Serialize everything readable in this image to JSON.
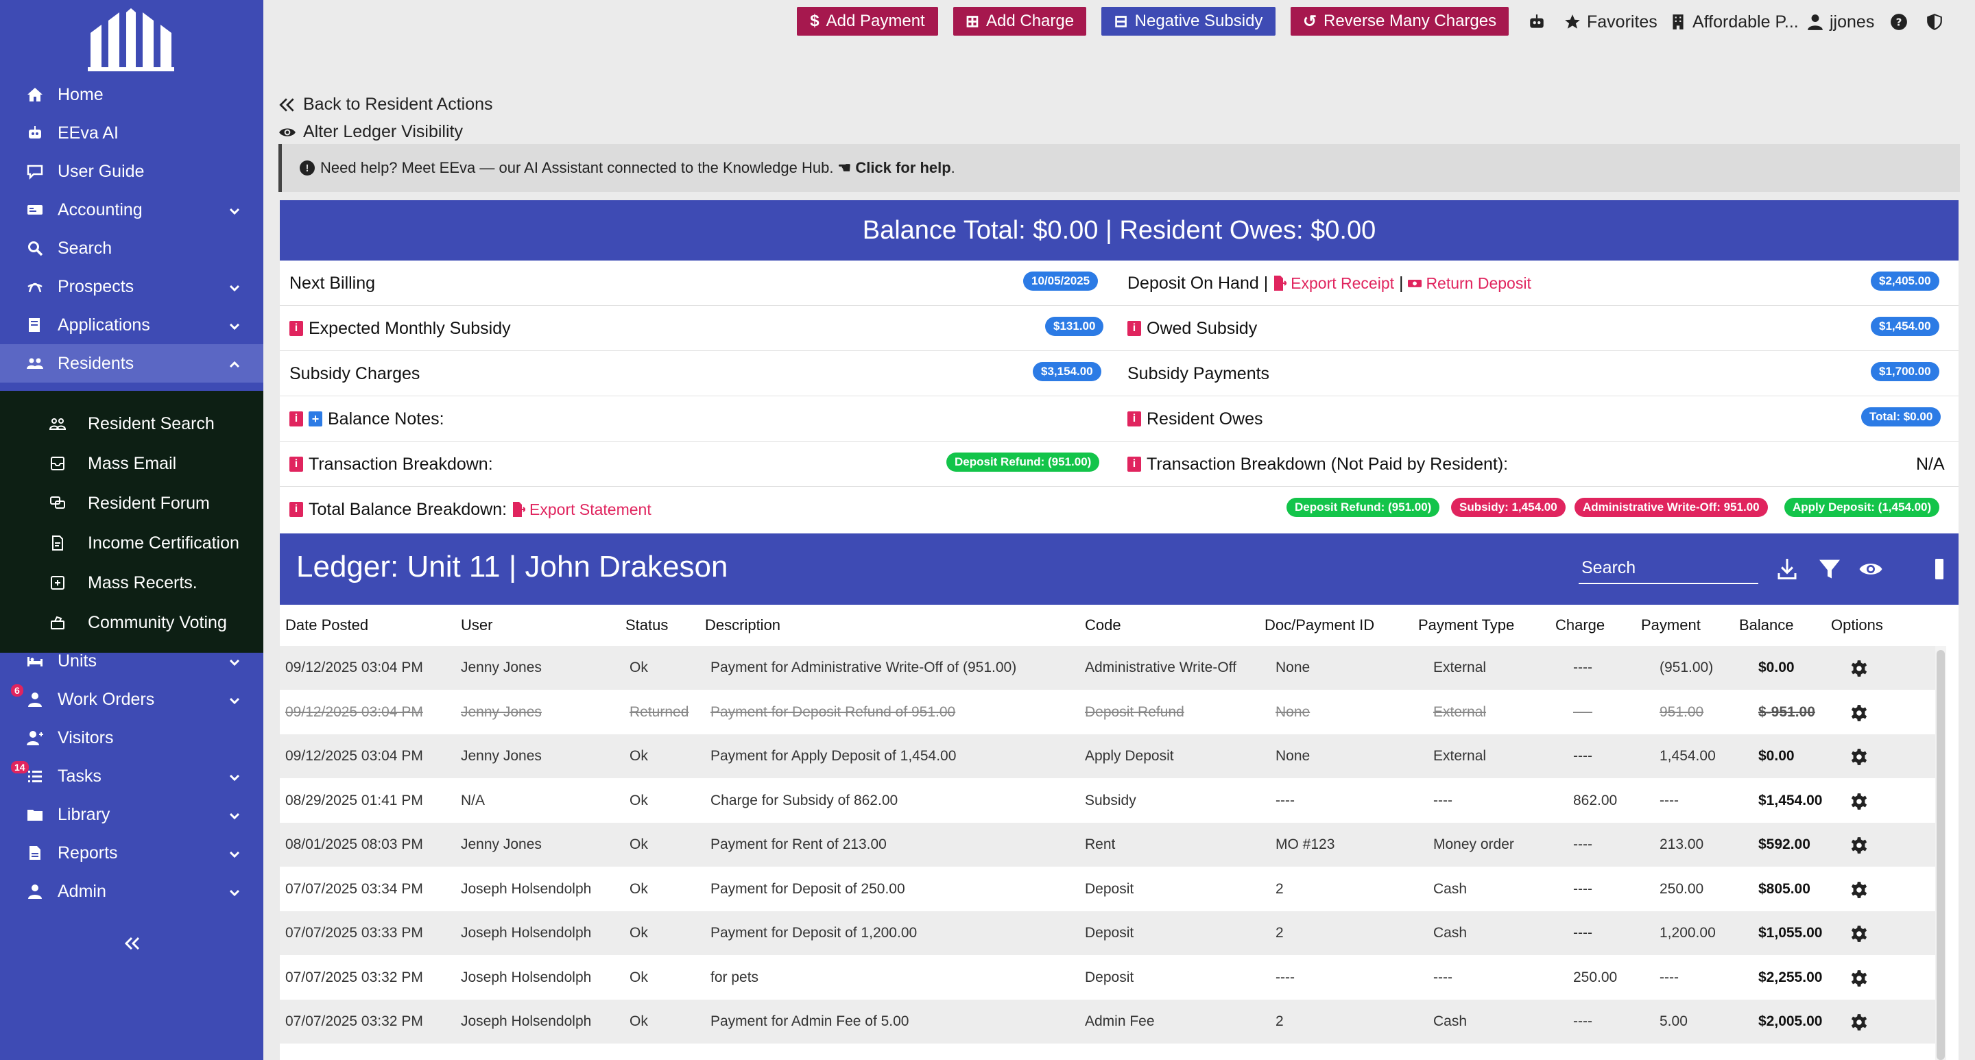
{
  "sidebar": {
    "items": [
      {
        "label": "Home",
        "icon": "home-icon"
      },
      {
        "label": "EEva AI",
        "icon": "robot-icon"
      },
      {
        "label": "User Guide",
        "icon": "guide-icon"
      },
      {
        "label": "Accounting",
        "icon": "accounting-icon"
      },
      {
        "label": "Search",
        "icon": "search-icon"
      },
      {
        "label": "Prospects",
        "icon": "prospects-icon"
      },
      {
        "label": "Applications",
        "icon": "applications-icon"
      },
      {
        "label": "Residents",
        "icon": "residents-icon"
      },
      {
        "label": "Units",
        "icon": "units-icon"
      },
      {
        "label": "Work Orders",
        "icon": "work-orders-icon",
        "badge": "6"
      },
      {
        "label": "Visitors",
        "icon": "visitors-icon"
      },
      {
        "label": "Tasks",
        "icon": "tasks-icon",
        "badge": "14"
      },
      {
        "label": "Library",
        "icon": "library-icon"
      },
      {
        "label": "Reports",
        "icon": "reports-icon"
      },
      {
        "label": "Admin",
        "icon": "admin-icon"
      }
    ],
    "submenu": [
      {
        "label": "Resident Search"
      },
      {
        "label": "Mass Email"
      },
      {
        "label": "Resident Forum"
      },
      {
        "label": "Income Certification"
      },
      {
        "label": "Mass Recerts."
      },
      {
        "label": "Community Voting"
      }
    ]
  },
  "topbar": {
    "add_payment": "Add Payment",
    "add_charge": "Add Charge",
    "negative_subsidy": "Negative Subsidy",
    "reverse_many": "Reverse Many Charges",
    "favorites": "Favorites",
    "property": "Affordable P...",
    "user": "jjones"
  },
  "links": {
    "back": "Back to Resident Actions",
    "visibility": "Alter Ledger Visibility"
  },
  "help": {
    "text": "Need help? Meet EEva — our AI Assistant connected to the Knowledge Hub.",
    "cta": "Click for help",
    "period": "."
  },
  "balance": {
    "header": "Balance Total: $0.00 | Resident Owes: $0.00",
    "next_billing_label": "Next Billing",
    "next_billing_value": "10/05/2025",
    "deposit_label": "Deposit On Hand |",
    "export_receipt": "Export Receipt",
    "sep": "|",
    "return_deposit": "Return Deposit",
    "deposit_value": "$2,405.00",
    "expected_subsidy_label": "Expected Monthly Subsidy",
    "expected_subsidy_value": "$131.00",
    "owed_subsidy_label": "Owed Subsidy",
    "owed_subsidy_value": "$1,454.00",
    "subsidy_charges_label": "Subsidy Charges",
    "subsidy_charges_value": "$3,154.00",
    "subsidy_payments_label": "Subsidy Payments",
    "subsidy_payments_value": "$1,700.00",
    "balance_notes_label": "Balance Notes:",
    "resident_owes_label": "Resident Owes",
    "resident_owes_value": "Total: $0.00",
    "txn_breakdown_label": "Transaction Breakdown:",
    "txn_breakdown_value": "Deposit Refund: (951.00)",
    "txn_breakdown_np_label": "Transaction Breakdown (Not Paid by Resident):",
    "txn_breakdown_np_value": "N/A",
    "total_breakdown_label": "Total Balance Breakdown:",
    "export_statement": "Export Statement",
    "breakdown_pills": [
      {
        "text": "Deposit Refund: (951.00)",
        "color": "#13c44a"
      },
      {
        "text": "Subsidy: 1,454.00",
        "color": "#e0245e"
      },
      {
        "text": "Administrative Write-Off: 951.00",
        "color": "#e0245e"
      },
      {
        "text": "Apply Deposit: (1,454.00)",
        "color": "#13c44a"
      }
    ]
  },
  "ledger": {
    "title": "Ledger: Unit 11 | John Drakeson",
    "search_placeholder": "Search",
    "columns": [
      "Date Posted",
      "User",
      "Status",
      "Description",
      "Code",
      "Doc/Payment ID",
      "Payment Type",
      "Charge",
      "Payment",
      "Balance",
      "Options"
    ],
    "rows": [
      {
        "date": "09/12/2025 03:04 PM",
        "user": "Jenny Jones",
        "status": "Ok",
        "desc": "Payment for Administrative Write-Off of (951.00)",
        "code": "Administrative Write-Off",
        "doc": "None",
        "ptype": "External",
        "charge": "----",
        "payment": "(951.00)",
        "balance": "$0.00",
        "returned": false
      },
      {
        "date": "09/12/2025 03:04 PM",
        "user": "Jenny Jones",
        "status": "Returned",
        "desc": "Payment for Deposit Refund of 951.00",
        "code": "Deposit Refund",
        "doc": "None",
        "ptype": "External",
        "charge": "----",
        "payment": "951.00",
        "balance": "$-951.00",
        "returned": true
      },
      {
        "date": "09/12/2025 03:04 PM",
        "user": "Jenny Jones",
        "status": "Ok",
        "desc": "Payment for Apply Deposit of 1,454.00",
        "code": "Apply Deposit",
        "doc": "None",
        "ptype": "External",
        "charge": "----",
        "payment": "1,454.00",
        "balance": "$0.00",
        "returned": false
      },
      {
        "date": "08/29/2025 01:41 PM",
        "user": "N/A",
        "status": "Ok",
        "desc": "Charge for Subsidy of 862.00",
        "code": "Subsidy",
        "doc": "----",
        "ptype": "----",
        "charge": "862.00",
        "payment": "----",
        "balance": "$1,454.00",
        "returned": false
      },
      {
        "date": "08/01/2025 08:03 PM",
        "user": "Jenny Jones",
        "status": "Ok",
        "desc": "Payment for Rent of 213.00",
        "code": "Rent",
        "doc": "MO #123",
        "ptype": "Money order",
        "charge": "----",
        "payment": "213.00",
        "balance": "$592.00",
        "returned": false
      },
      {
        "date": "07/07/2025 03:34 PM",
        "user": "Joseph Holsendolph",
        "status": "Ok",
        "desc": "Payment for Deposit of 250.00",
        "code": "Deposit",
        "doc": "2",
        "ptype": "Cash",
        "charge": "----",
        "payment": "250.00",
        "balance": "$805.00",
        "returned": false
      },
      {
        "date": "07/07/2025 03:33 PM",
        "user": "Joseph Holsendolph",
        "status": "Ok",
        "desc": "Payment for Deposit of 1,200.00",
        "code": "Deposit",
        "doc": "2",
        "ptype": "Cash",
        "charge": "----",
        "payment": "1,200.00",
        "balance": "$1,055.00",
        "returned": false
      },
      {
        "date": "07/07/2025 03:32 PM",
        "user": "Joseph Holsendolph",
        "status": "Ok",
        "desc": "for pets",
        "code": "Deposit",
        "doc": "----",
        "ptype": "----",
        "charge": "250.00",
        "payment": "----",
        "balance": "$2,255.00",
        "returned": false
      },
      {
        "date": "07/07/2025 03:32 PM",
        "user": "Joseph Holsendolph",
        "status": "Ok",
        "desc": "Payment for Admin Fee of 5.00",
        "code": "Admin Fee",
        "doc": "2",
        "ptype": "Cash",
        "charge": "----",
        "payment": "5.00",
        "balance": "$2,005.00",
        "returned": false
      }
    ]
  },
  "colors": {
    "sidebar": "#3e4bb4",
    "submenu": "#0d1f14",
    "crimson": "#a6184e",
    "accent_red": "#e0245e",
    "pill_blue": "#2c7be5",
    "pill_green": "#13c44a"
  }
}
